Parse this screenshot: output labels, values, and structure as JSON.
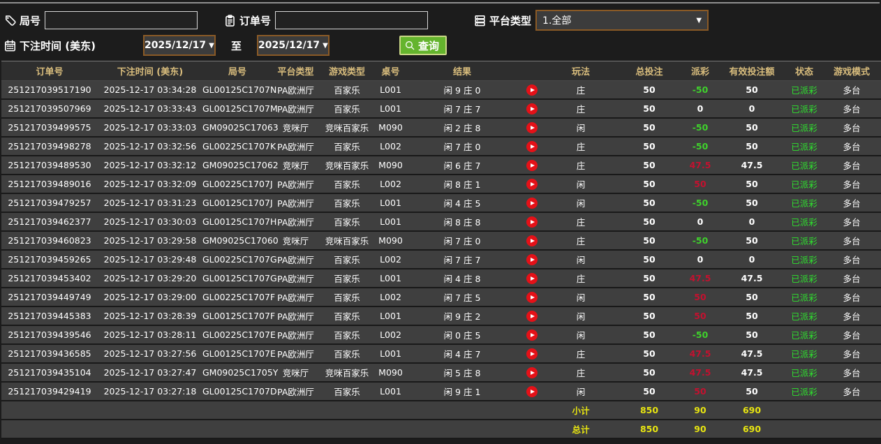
{
  "filters": {
    "round_label": "局号",
    "round_value": "",
    "order_label": "订单号",
    "order_value": "",
    "platform_label": "平台类型",
    "platform_value": "1.全部",
    "time_label": "下注时间 (美东)",
    "date_from": "2025/12/17",
    "to_label": "至",
    "date_to": "2025/12/17",
    "search_label": "查询"
  },
  "colors": {
    "header_text": "#d9bd7d",
    "payout_positive": "#c3112f",
    "payout_negative": "#3fd12c",
    "status_green": "#2fe12f",
    "footer_yellow": "#e7e411",
    "search_button_green": "#64b42d",
    "picker_border_orange": "#8a5a26",
    "play_icon_red": "#e41118"
  },
  "table": {
    "headers": [
      "订单号",
      "下注时间 (美东)",
      "局号",
      "平台类型",
      "游戏类型",
      "桌号",
      "结果",
      "",
      "玩法",
      "总投注",
      "派彩",
      "有效投注额",
      "状态",
      "游戏模式"
    ],
    "rows": [
      {
        "order_id": "251217039517190",
        "bet_time": "2025-12-17 03:34:28",
        "round_id": "GL00125C1707N",
        "platform": "PA欧洲厅",
        "game_type": "百家乐",
        "table_no": "L001",
        "result": "闲 9 庄 0",
        "play": "庄",
        "total_bet": "50",
        "payout": "-50",
        "payout_tone": "neg",
        "valid_bet": "50",
        "status": "已派彩",
        "mode": "多台"
      },
      {
        "order_id": "251217039507969",
        "bet_time": "2025-12-17 03:33:43",
        "round_id": "GL00125C1707M",
        "platform": "PA欧洲厅",
        "game_type": "百家乐",
        "table_no": "L001",
        "result": "闲 7 庄 7",
        "play": "庄",
        "total_bet": "50",
        "payout": "0",
        "payout_tone": "zero",
        "valid_bet": "0",
        "status": "已派彩",
        "mode": "多台"
      },
      {
        "order_id": "251217039499575",
        "bet_time": "2025-12-17 03:33:03",
        "round_id": "GM09025C17063",
        "platform": "竞咪厅",
        "game_type": "竞咪百家乐",
        "table_no": "M090",
        "result": "闲 2 庄 8",
        "play": "闲",
        "total_bet": "50",
        "payout": "-50",
        "payout_tone": "neg",
        "valid_bet": "50",
        "status": "已派彩",
        "mode": "多台"
      },
      {
        "order_id": "251217039498278",
        "bet_time": "2025-12-17 03:32:56",
        "round_id": "GL00225C1707K",
        "platform": "PA欧洲厅",
        "game_type": "百家乐",
        "table_no": "L002",
        "result": "闲 7 庄 0",
        "play": "庄",
        "total_bet": "50",
        "payout": "-50",
        "payout_tone": "neg",
        "valid_bet": "50",
        "status": "已派彩",
        "mode": "多台"
      },
      {
        "order_id": "251217039489530",
        "bet_time": "2025-12-17 03:32:12",
        "round_id": "GM09025C17062",
        "platform": "竞咪厅",
        "game_type": "竞咪百家乐",
        "table_no": "M090",
        "result": "闲 6 庄 7",
        "play": "庄",
        "total_bet": "50",
        "payout": "47.5",
        "payout_tone": "pos",
        "valid_bet": "47.5",
        "status": "已派彩",
        "mode": "多台"
      },
      {
        "order_id": "251217039489016",
        "bet_time": "2025-12-17 03:32:09",
        "round_id": "GL00225C1707J",
        "platform": "PA欧洲厅",
        "game_type": "百家乐",
        "table_no": "L002",
        "result": "闲 8 庄 1",
        "play": "闲",
        "total_bet": "50",
        "payout": "50",
        "payout_tone": "pos",
        "valid_bet": "50",
        "status": "已派彩",
        "mode": "多台"
      },
      {
        "order_id": "251217039479257",
        "bet_time": "2025-12-17 03:31:23",
        "round_id": "GL00125C1707J",
        "platform": "PA欧洲厅",
        "game_type": "百家乐",
        "table_no": "L001",
        "result": "闲 4 庄 5",
        "play": "闲",
        "total_bet": "50",
        "payout": "-50",
        "payout_tone": "neg",
        "valid_bet": "50",
        "status": "已派彩",
        "mode": "多台"
      },
      {
        "order_id": "251217039462377",
        "bet_time": "2025-12-17 03:30:03",
        "round_id": "GL00125C1707H",
        "platform": "PA欧洲厅",
        "game_type": "百家乐",
        "table_no": "L001",
        "result": "闲 8 庄 8",
        "play": "庄",
        "total_bet": "50",
        "payout": "0",
        "payout_tone": "zero",
        "valid_bet": "0",
        "status": "已派彩",
        "mode": "多台"
      },
      {
        "order_id": "251217039460823",
        "bet_time": "2025-12-17 03:29:58",
        "round_id": "GM09025C17060",
        "platform": "竞咪厅",
        "game_type": "竞咪百家乐",
        "table_no": "M090",
        "result": "闲 7 庄 0",
        "play": "庄",
        "total_bet": "50",
        "payout": "-50",
        "payout_tone": "neg",
        "valid_bet": "50",
        "status": "已派彩",
        "mode": "多台"
      },
      {
        "order_id": "251217039459265",
        "bet_time": "2025-12-17 03:29:48",
        "round_id": "GL00225C1707G",
        "platform": "PA欧洲厅",
        "game_type": "百家乐",
        "table_no": "L002",
        "result": "闲 7 庄 7",
        "play": "闲",
        "total_bet": "50",
        "payout": "0",
        "payout_tone": "zero",
        "valid_bet": "0",
        "status": "已派彩",
        "mode": "多台"
      },
      {
        "order_id": "251217039453402",
        "bet_time": "2025-12-17 03:29:20",
        "round_id": "GL00125C1707G",
        "platform": "PA欧洲厅",
        "game_type": "百家乐",
        "table_no": "L001",
        "result": "闲 4 庄 8",
        "play": "庄",
        "total_bet": "50",
        "payout": "47.5",
        "payout_tone": "pos",
        "valid_bet": "47.5",
        "status": "已派彩",
        "mode": "多台"
      },
      {
        "order_id": "251217039449749",
        "bet_time": "2025-12-17 03:29:00",
        "round_id": "GL00225C1707F",
        "platform": "PA欧洲厅",
        "game_type": "百家乐",
        "table_no": "L002",
        "result": "闲 7 庄 5",
        "play": "闲",
        "total_bet": "50",
        "payout": "50",
        "payout_tone": "pos",
        "valid_bet": "50",
        "status": "已派彩",
        "mode": "多台"
      },
      {
        "order_id": "251217039445383",
        "bet_time": "2025-12-17 03:28:39",
        "round_id": "GL00125C1707F",
        "platform": "PA欧洲厅",
        "game_type": "百家乐",
        "table_no": "L001",
        "result": "闲 9 庄 2",
        "play": "闲",
        "total_bet": "50",
        "payout": "50",
        "payout_tone": "pos",
        "valid_bet": "50",
        "status": "已派彩",
        "mode": "多台"
      },
      {
        "order_id": "251217039439546",
        "bet_time": "2025-12-17 03:28:11",
        "round_id": "GL00225C1707E",
        "platform": "PA欧洲厅",
        "game_type": "百家乐",
        "table_no": "L002",
        "result": "闲 0 庄 5",
        "play": "闲",
        "total_bet": "50",
        "payout": "-50",
        "payout_tone": "neg",
        "valid_bet": "50",
        "status": "已派彩",
        "mode": "多台"
      },
      {
        "order_id": "251217039436585",
        "bet_time": "2025-12-17 03:27:56",
        "round_id": "GL00125C1707E",
        "platform": "PA欧洲厅",
        "game_type": "百家乐",
        "table_no": "L001",
        "result": "闲 4 庄 7",
        "play": "庄",
        "total_bet": "50",
        "payout": "47.5",
        "payout_tone": "pos",
        "valid_bet": "47.5",
        "status": "已派彩",
        "mode": "多台"
      },
      {
        "order_id": "251217039435104",
        "bet_time": "2025-12-17 03:27:47",
        "round_id": "GM09025C1705Y",
        "platform": "竞咪厅",
        "game_type": "竞咪百家乐",
        "table_no": "M090",
        "result": "闲 5 庄 8",
        "play": "庄",
        "total_bet": "50",
        "payout": "47.5",
        "payout_tone": "pos",
        "valid_bet": "47.5",
        "status": "已派彩",
        "mode": "多台"
      },
      {
        "order_id": "251217039429419",
        "bet_time": "2025-12-17 03:27:18",
        "round_id": "GL00125C1707D",
        "platform": "PA欧洲厅",
        "game_type": "百家乐",
        "table_no": "L001",
        "result": "闲 9 庄 1",
        "play": "闲",
        "total_bet": "50",
        "payout": "50",
        "payout_tone": "pos",
        "valid_bet": "50",
        "status": "已派彩",
        "mode": "多台"
      }
    ],
    "subtotal": {
      "label": "小计",
      "total_bet": "850",
      "payout": "90",
      "valid_bet": "690"
    },
    "grand_total": {
      "label": "总计",
      "total_bet": "850",
      "payout": "90",
      "valid_bet": "690"
    }
  }
}
